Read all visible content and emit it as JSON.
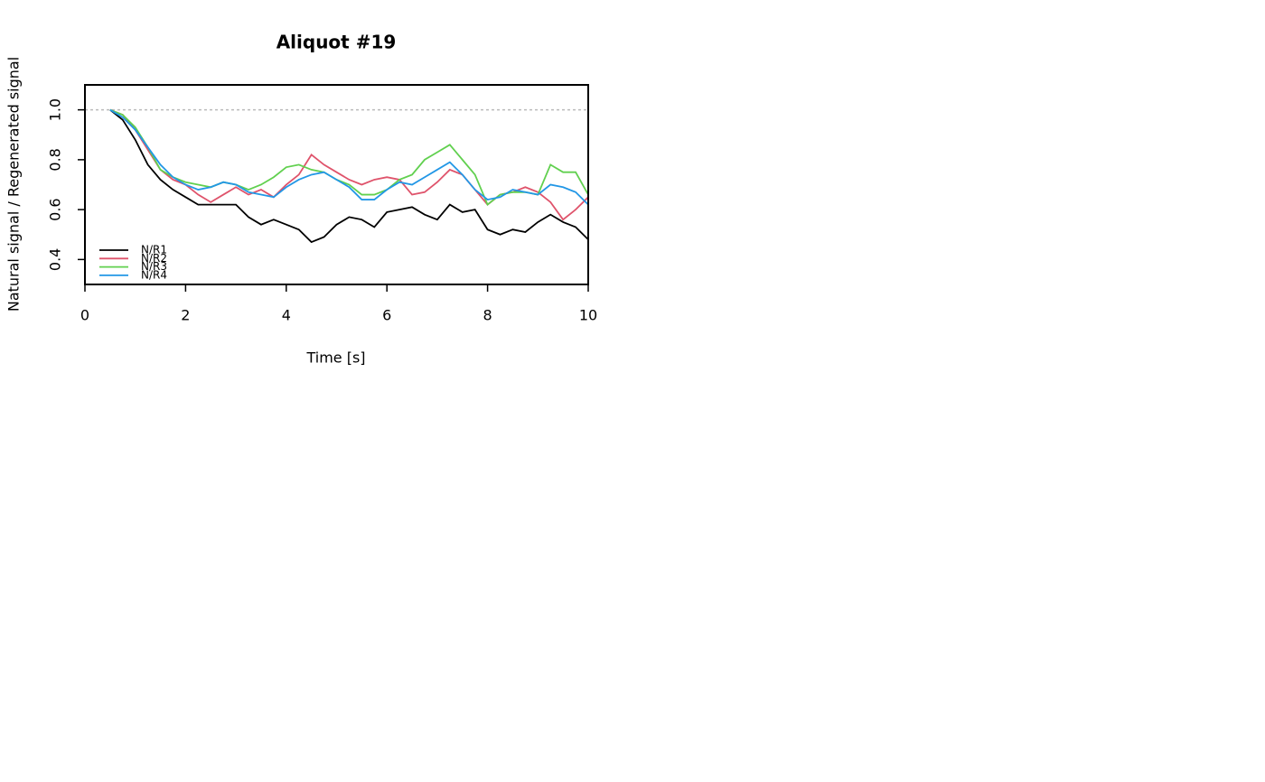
{
  "chart_data": {
    "type": "line",
    "title": "Aliquot #19",
    "x_label": "Time [s]",
    "y_label": "Natural signal / Regenerated signal",
    "x": [
      0.5,
      0.75,
      1,
      1.25,
      1.5,
      1.75,
      2,
      2.25,
      2.5,
      2.75,
      3,
      3.25,
      3.5,
      3.75,
      4,
      4.25,
      4.5,
      4.75,
      5,
      5.25,
      5.5,
      5.75,
      6,
      6.25,
      6.5,
      6.75,
      7,
      7.25,
      7.5,
      7.75,
      8,
      8.25,
      8.5,
      8.75,
      9,
      9.25,
      9.5,
      9.75,
      10
    ],
    "series": [
      {
        "name": "N/R1",
        "color": "#000000",
        "values": [
          1.0,
          0.96,
          0.88,
          0.78,
          0.72,
          0.68,
          0.65,
          0.62,
          0.62,
          0.62,
          0.62,
          0.57,
          0.54,
          0.56,
          0.54,
          0.52,
          0.47,
          0.49,
          0.54,
          0.57,
          0.56,
          0.53,
          0.59,
          0.6,
          0.61,
          0.58,
          0.56,
          0.62,
          0.59,
          0.6,
          0.52,
          0.5,
          0.52,
          0.51,
          0.55,
          0.58,
          0.55,
          0.53,
          0.48
        ]
      },
      {
        "name": "N/R2",
        "color": "#DF536B",
        "values": [
          1.0,
          0.98,
          0.92,
          0.84,
          0.76,
          0.72,
          0.7,
          0.66,
          0.63,
          0.66,
          0.69,
          0.66,
          0.68,
          0.65,
          0.7,
          0.74,
          0.82,
          0.78,
          0.75,
          0.72,
          0.7,
          0.72,
          0.73,
          0.72,
          0.66,
          0.67,
          0.71,
          0.76,
          0.74,
          0.68,
          0.62,
          0.66,
          0.67,
          0.69,
          0.67,
          0.63,
          0.56,
          0.6,
          0.65
        ]
      },
      {
        "name": "N/R3",
        "color": "#61D04F",
        "values": [
          1.0,
          0.98,
          0.93,
          0.85,
          0.76,
          0.73,
          0.71,
          0.7,
          0.69,
          0.71,
          0.7,
          0.68,
          0.7,
          0.73,
          0.77,
          0.78,
          0.76,
          0.75,
          0.72,
          0.7,
          0.66,
          0.66,
          0.68,
          0.72,
          0.74,
          0.8,
          0.83,
          0.86,
          0.8,
          0.74,
          0.62,
          0.66,
          0.67,
          0.67,
          0.66,
          0.78,
          0.75,
          0.75,
          0.66
        ]
      },
      {
        "name": "N/R4",
        "color": "#2297E6",
        "values": [
          1.0,
          0.97,
          0.92,
          0.85,
          0.78,
          0.73,
          0.7,
          0.68,
          0.69,
          0.71,
          0.7,
          0.67,
          0.66,
          0.65,
          0.69,
          0.72,
          0.74,
          0.75,
          0.72,
          0.69,
          0.64,
          0.64,
          0.68,
          0.71,
          0.7,
          0.73,
          0.76,
          0.79,
          0.74,
          0.68,
          0.64,
          0.65,
          0.68,
          0.67,
          0.66,
          0.7,
          0.69,
          0.67,
          0.62
        ]
      }
    ],
    "hline": 1.0,
    "xlim": [
      0,
      10
    ],
    "xticks": [
      0,
      2,
      4,
      6,
      8,
      10
    ],
    "ylim": [
      0.3,
      1.1
    ],
    "yticks": [
      0.4,
      0.6,
      0.8,
      {
        "value": 1,
        "label": "1.0"
      }
    ],
    "legend": "bottom-left"
  }
}
